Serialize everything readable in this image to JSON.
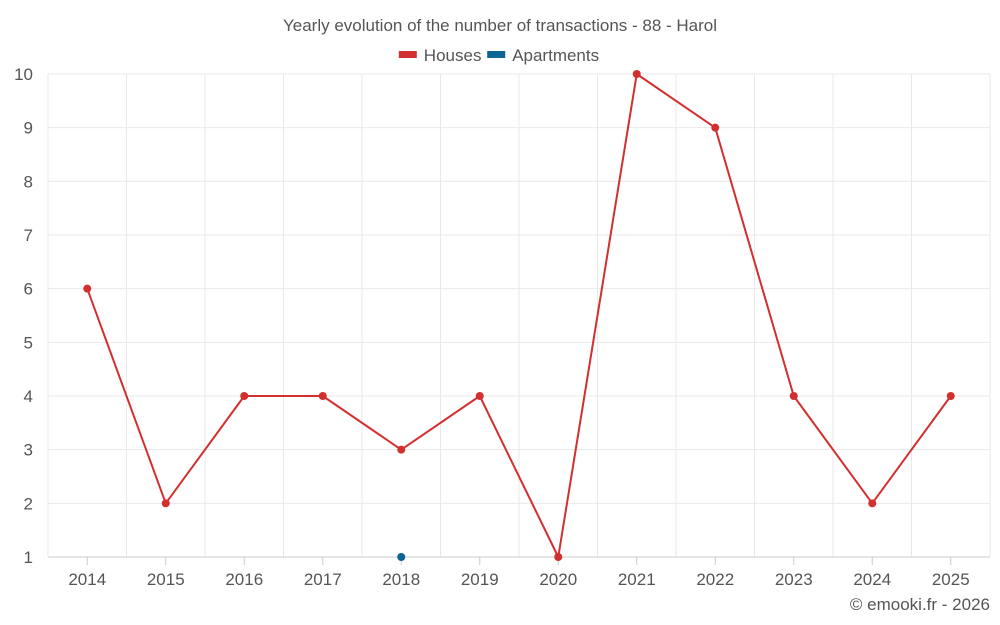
{
  "chart_data": {
    "type": "line",
    "title": "Yearly evolution of the number of transactions - 88 - Harol",
    "categories": [
      "2014",
      "2015",
      "2016",
      "2017",
      "2018",
      "2019",
      "2020",
      "2021",
      "2022",
      "2023",
      "2024",
      "2025"
    ],
    "ylim": [
      1,
      10
    ],
    "yticks": [
      1,
      2,
      3,
      4,
      5,
      6,
      7,
      8,
      9,
      10
    ],
    "series": [
      {
        "name": "Houses",
        "color": "#d32f2f",
        "values": [
          6,
          2,
          4,
          4,
          3,
          4,
          1,
          10,
          9,
          4,
          2,
          4
        ]
      },
      {
        "name": "Apartments",
        "color": "#0a6496",
        "values": [
          null,
          null,
          null,
          null,
          1,
          null,
          null,
          null,
          null,
          null,
          null,
          null
        ]
      }
    ],
    "legend_position": "top-center",
    "grid": true
  },
  "credit": "© emooki.fr - 2026"
}
